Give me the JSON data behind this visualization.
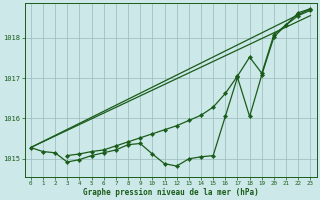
{
  "bg_color": "#cce8e8",
  "grid_color": "#99bbbb",
  "line_color": "#1a5c1a",
  "xlabel": "Graphe pression niveau de la mer (hPa)",
  "ylim": [
    1014.55,
    1018.85
  ],
  "xlim": [
    -0.5,
    23.5
  ],
  "yticks": [
    1015,
    1016,
    1017,
    1018
  ],
  "xticks": [
    0,
    1,
    2,
    3,
    4,
    5,
    6,
    7,
    8,
    9,
    10,
    11,
    12,
    13,
    14,
    15,
    16,
    17,
    18,
    19,
    20,
    21,
    22,
    23
  ],
  "series": [
    {
      "x": [
        0,
        23
      ],
      "y": [
        1015.28,
        1018.72
      ],
      "marker": null,
      "linewidth": 0.9
    },
    {
      "x": [
        0,
        23
      ],
      "y": [
        1015.28,
        1018.55
      ],
      "marker": null,
      "linewidth": 0.9
    },
    {
      "x": [
        0,
        1,
        2,
        3,
        4,
        5,
        6,
        7,
        8,
        9,
        10,
        11,
        12,
        13,
        14,
        15,
        16,
        17,
        18,
        19,
        20,
        21,
        22,
        23
      ],
      "y": [
        1015.28,
        1015.18,
        1015.15,
        1014.92,
        1014.98,
        1015.08,
        1015.15,
        1015.22,
        1015.35,
        1015.38,
        1015.12,
        1014.88,
        1014.82,
        1015.0,
        1015.05,
        1015.08,
        1016.05,
        1017.02,
        1016.05,
        1017.08,
        1018.02,
        1018.32,
        1018.62,
        1018.72
      ],
      "marker": "D",
      "markersize": 2.2,
      "linewidth": 0.9
    },
    {
      "x": [
        3,
        4,
        5,
        6,
        7,
        8,
        9,
        10,
        11,
        12,
        13,
        14,
        15,
        16,
        17,
        18,
        19,
        20,
        21,
        22,
        23
      ],
      "y": [
        1015.08,
        1015.12,
        1015.18,
        1015.22,
        1015.32,
        1015.42,
        1015.52,
        1015.62,
        1015.72,
        1015.82,
        1015.95,
        1016.08,
        1016.28,
        1016.62,
        1017.05,
        1017.52,
        1017.12,
        1018.08,
        1018.32,
        1018.55,
        1018.68
      ],
      "marker": "D",
      "markersize": 2.2,
      "linewidth": 0.9
    }
  ]
}
